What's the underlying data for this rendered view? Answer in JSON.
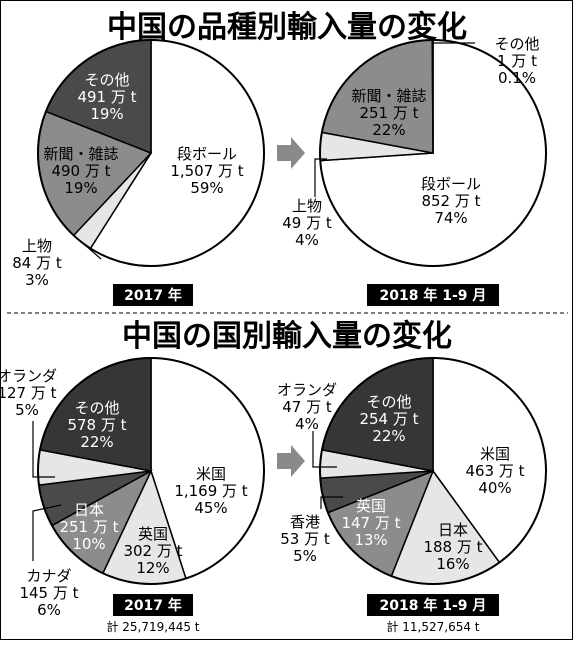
{
  "titles": {
    "top": "中国の品種別輸入量の変化",
    "bottom": "中国の国別輸入量の変化"
  },
  "periods": {
    "p2017": "2017 年",
    "p2018": "2018 年 1-9 月"
  },
  "totals": {
    "t2017": "計 25,719,445 t",
    "t2018": "計 11,527,654 t"
  },
  "colors": {
    "dark": "#4a4a4a",
    "mid": "#8c8c8c",
    "light": "#e6e6e6",
    "white": "#ffffff",
    "darker": "#363636",
    "arrow": "#8a8a8a"
  },
  "chart_data": [
    {
      "type": "pie",
      "title": "中国の品種別輸入量の変化",
      "period": "2017 年",
      "slices": [
        {
          "name": "段ボール",
          "value_text": "1,507 万 t",
          "percent_text": "59%",
          "share": 59,
          "color": "white"
        },
        {
          "name": "上物",
          "value_text": "84 万 t",
          "percent_text": "3%",
          "share": 3,
          "color": "light"
        },
        {
          "name": "新聞・雑誌",
          "value_text": "490 万 t",
          "percent_text": "19%",
          "share": 19,
          "color": "mid"
        },
        {
          "name": "その他",
          "value_text": "491 万 t",
          "percent_text": "19%",
          "share": 19,
          "color": "dark"
        }
      ]
    },
    {
      "type": "pie",
      "title": "中国の品種別輸入量の変化",
      "period": "2018 年 1-9 月",
      "slices": [
        {
          "name": "段ボール",
          "value_text": "852 万 t",
          "percent_text": "74%",
          "share": 74,
          "color": "white"
        },
        {
          "name": "上物",
          "value_text": "49 万 t",
          "percent_text": "4%",
          "share": 4,
          "color": "light"
        },
        {
          "name": "新聞・雑誌",
          "value_text": "251 万 t",
          "percent_text": "22%",
          "share": 22,
          "color": "mid"
        },
        {
          "name": "その他",
          "value_text": "1 万 t",
          "percent_text": "0.1%",
          "share": 0.1,
          "color": "dark"
        }
      ]
    },
    {
      "type": "pie",
      "title": "中国の国別輸入量の変化",
      "period": "2017 年",
      "total": "計 25,719,445 t",
      "slices": [
        {
          "name": "米国",
          "value_text": "1,169 万 t",
          "percent_text": "45%",
          "share": 45,
          "color": "white"
        },
        {
          "name": "英国",
          "value_text": "302 万 t",
          "percent_text": "12%",
          "share": 12,
          "color": "light"
        },
        {
          "name": "日本",
          "value_text": "251 万 t",
          "percent_text": "10%",
          "share": 10,
          "color": "mid"
        },
        {
          "name": "カナダ",
          "value_text": "145 万 t",
          "percent_text": "6%",
          "share": 6,
          "color": "dark"
        },
        {
          "name": "オランダ",
          "value_text": "127 万 t",
          "percent_text": "5%",
          "share": 5,
          "color": "light"
        },
        {
          "name": "その他",
          "value_text": "578 万 t",
          "percent_text": "22%",
          "share": 22,
          "color": "darker"
        }
      ]
    },
    {
      "type": "pie",
      "title": "中国の国別輸入量の変化",
      "period": "2018 年 1-9 月",
      "total": "計 11,527,654 t",
      "slices": [
        {
          "name": "米国",
          "value_text": "463 万 t",
          "percent_text": "40%",
          "share": 40,
          "color": "white"
        },
        {
          "name": "日本",
          "value_text": "188 万 t",
          "percent_text": "16%",
          "share": 16,
          "color": "light"
        },
        {
          "name": "英国",
          "value_text": "147 万 t",
          "percent_text": "13%",
          "share": 13,
          "color": "mid"
        },
        {
          "name": "香港",
          "value_text": "53 万 t",
          "percent_text": "5%",
          "share": 5,
          "color": "dark"
        },
        {
          "name": "オランダ",
          "value_text": "47 万 t",
          "percent_text": "4%",
          "share": 4,
          "color": "light"
        },
        {
          "name": "その他",
          "value_text": "254 万 t",
          "percent_text": "22%",
          "share": 22,
          "color": "darker"
        }
      ]
    }
  ]
}
